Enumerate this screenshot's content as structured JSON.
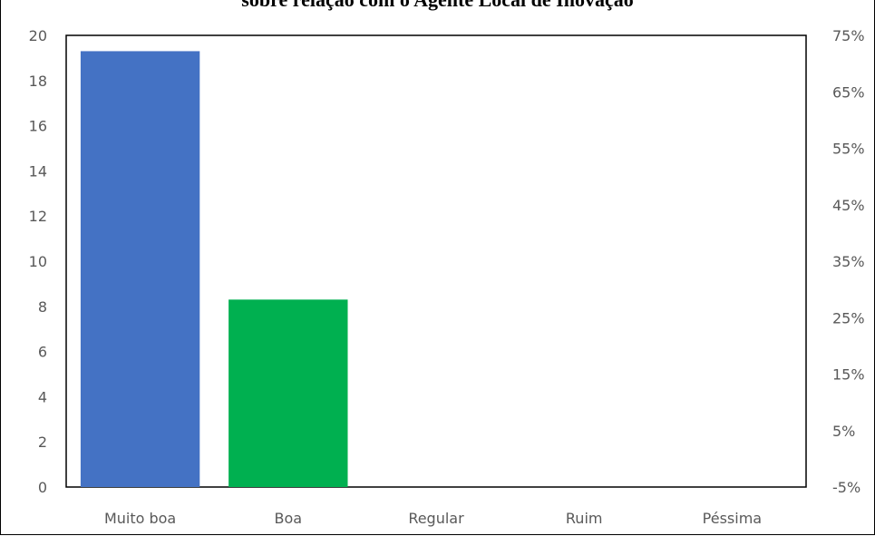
{
  "chart_data": {
    "type": "bar",
    "title": "sobre relação com o Agente Local de Inovação",
    "categories": [
      "Muito boa",
      "Boa",
      "Regular",
      "Ruim",
      "Péssima"
    ],
    "values": [
      19.3,
      8.3,
      0,
      0,
      0
    ],
    "bar_colors": [
      "#4472C4",
      "#00B050",
      "#A5A5A5",
      "#FFC000",
      "#5B9BD5"
    ],
    "ylim": [
      0,
      20
    ],
    "y_ticks": [
      "0",
      "2",
      "4",
      "6",
      "8",
      "10",
      "12",
      "14",
      "16",
      "18",
      "20"
    ],
    "y2_ticks": [
      "-5%",
      "5%",
      "15%",
      "25%",
      "35%",
      "45%",
      "55%",
      "65%",
      "75%"
    ],
    "grid": false,
    "xlabel": "",
    "ylabel": ""
  }
}
